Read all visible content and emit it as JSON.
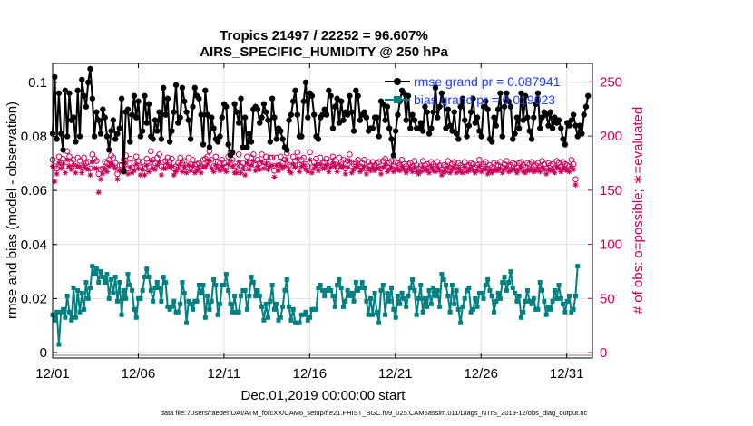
{
  "chart_data": {
    "type": "line",
    "title": "Tropics 21497 / 22252 = 96.607%",
    "subtitle": "AIRS_SPECIFIC_HUMIDITY @ 250 hPa",
    "xlabel": "Dec.01,2019 00:00:00 start",
    "ylabel": "rmse and bias (model - observation)",
    "y2label": "# of obs: o=possible; ∗=evaluated",
    "footer": "data file: /Users/raeder/DAI/ATM_forcXX/CAM6_setup/f.e21.FHIST_BGC.f09_025.CAM6assim.011/Diags_NTrS_2019-12/obs_diag_output.nc",
    "xlim": [
      1,
      32.5
    ],
    "ylim": [
      -0.002,
      0.107
    ],
    "y2lim": [
      -5,
      267
    ],
    "x_ticks": [
      1,
      6,
      11,
      16,
      21,
      26,
      31
    ],
    "x_tick_labels": [
      "12/01",
      "12/06",
      "12/11",
      "12/16",
      "12/21",
      "12/26",
      "12/31"
    ],
    "y_ticks": [
      0,
      0.02,
      0.04,
      0.06,
      0.08,
      0.1
    ],
    "y_tick_labels": [
      "0",
      "0.02",
      "0.04",
      "0.06",
      "0.08",
      "0.1"
    ],
    "y2_ticks": [
      0,
      50,
      100,
      150,
      200,
      250
    ],
    "y2_tick_labels": [
      "0",
      "50",
      "100",
      "150",
      "200",
      "250"
    ],
    "grid": true,
    "legend_position": "top-right",
    "colors": {
      "rmse": "#000000",
      "bias": "#008080",
      "obs": "#c8005a",
      "legend_text": "#1a3cff",
      "grid": "#e0e0e0"
    },
    "series": [
      {
        "name": "rmse grand pr = 0.087941",
        "axis": "left",
        "values": [
          0.081,
          0.102,
          0.079,
          0.096,
          0.081,
          0.075,
          0.097,
          0.08,
          0.096,
          0.086,
          0.087,
          0.078,
          0.097,
          0.08,
          0.101,
          0.095,
          0.091,
          0.1,
          0.105,
          0.094,
          0.08,
          0.089,
          0.086,
          0.081,
          0.09,
          0.087,
          0.08,
          0.075,
          0.082,
          0.086,
          0.079,
          0.081,
          0.083,
          0.094,
          0.067,
          0.089,
          0.09,
          0.078,
          0.088,
          0.095,
          0.087,
          0.093,
          0.08,
          0.082,
          0.095,
          0.085,
          0.092,
          0.08,
          0.079,
          0.086,
          0.082,
          0.089,
          0.079,
          0.098,
          0.088,
          0.094,
          0.078,
          0.082,
          0.089,
          0.099,
          0.085,
          0.087,
          0.098,
          0.093,
          0.089,
          0.086,
          0.079,
          0.091,
          0.098,
          0.095,
          0.094,
          0.088,
          0.077,
          0.097,
          0.088,
          0.076,
          0.087,
          0.083,
          0.079,
          0.078,
          0.08,
          0.087,
          0.092,
          0.091,
          0.077,
          0.073,
          0.074,
          0.092,
          0.089,
          0.085,
          0.094,
          0.076,
          0.087,
          0.076,
          0.081,
          0.078,
          0.09,
          0.091,
          0.09,
          0.085,
          0.087,
          0.092,
          0.089,
          0.086,
          0.078,
          0.094,
          0.087,
          0.079,
          0.083,
          0.082,
          0.079,
          0.076,
          0.075,
          0.086,
          0.088,
          0.093,
          0.097,
          0.088,
          0.08,
          0.08,
          0.093,
          0.1,
          0.087,
          0.096,
          0.095,
          0.088,
          0.08,
          0.079,
          0.087,
          0.088,
          0.09,
          0.088,
          0.097,
          0.095,
          0.083,
          0.091,
          0.094,
          0.085,
          0.093,
          0.086,
          0.089,
          0.088,
          0.095,
          0.089,
          0.082,
          0.097,
          0.095,
          0.086,
          0.088,
          0.089,
          0.087,
          0.082,
          0.083,
          0.083,
          0.087,
          0.087,
          0.08,
          0.093,
          0.092,
          0.086,
          0.091,
          0.083,
          0.079,
          0.073,
          0.082,
          0.088,
          0.093,
          0.097,
          0.096,
          0.086,
          0.095,
          0.083,
          0.088,
          0.086,
          0.083,
          0.083,
          0.085,
          0.082,
          0.091,
          0.089,
          0.081,
          0.083,
          0.089,
          0.098,
          0.087,
          0.091,
          0.096,
          0.093,
          0.083,
          0.09,
          0.084,
          0.082,
          0.089,
          0.081,
          0.079,
          0.091,
          0.094,
          0.086,
          0.08,
          0.084,
          0.089,
          0.094,
          0.085,
          0.087,
          0.082,
          0.08,
          0.091,
          0.093,
          0.09,
          0.079,
          0.078,
          0.087,
          0.084,
          0.09,
          0.096,
          0.08,
          0.091,
          0.096,
          0.093,
          0.091,
          0.079,
          0.081,
          0.087,
          0.083,
          0.096,
          0.086,
          0.095,
          0.087,
          0.082,
          0.079,
          0.087,
          0.092,
          0.096,
          0.083,
          0.087,
          0.089,
          0.088,
          0.084,
          0.089,
          0.083,
          0.087,
          0.085,
          0.086,
          0.083,
          0.079,
          0.077,
          0.085,
          0.084,
          0.086,
          0.088,
          0.084,
          0.08,
          0.084,
          0.081,
          0.088,
          0.091,
          0.095
        ]
      },
      {
        "name": "bias grand pr = 0.019023",
        "axis": "left",
        "values": [
          0.014,
          0.012,
          0.015,
          0.003,
          0.015,
          0.016,
          0.013,
          0.021,
          0.015,
          0.012,
          0.024,
          0.013,
          0.023,
          0.015,
          0.022,
          0.016,
          0.026,
          0.02,
          0.024,
          0.032,
          0.029,
          0.031,
          0.026,
          0.03,
          0.028,
          0.026,
          0.029,
          0.02,
          0.027,
          0.022,
          0.028,
          0.019,
          0.026,
          0.014,
          0.023,
          0.02,
          0.029,
          0.025,
          0.023,
          0.016,
          0.013,
          0.02,
          0.02,
          0.023,
          0.028,
          0.031,
          0.028,
          0.023,
          0.019,
          0.024,
          0.026,
          0.024,
          0.019,
          0.028,
          0.026,
          0.017,
          0.016,
          0.017,
          0.019,
          0.015,
          0.015,
          0.018,
          0.026,
          0.022,
          0.011,
          0.019,
          0.018,
          0.016,
          0.019,
          0.019,
          0.025,
          0.022,
          0.025,
          0.013,
          0.021,
          0.016,
          0.019,
          0.027,
          0.025,
          0.014,
          0.018,
          0.025,
          0.025,
          0.029,
          0.023,
          0.018,
          0.015,
          0.021,
          0.015,
          0.015,
          0.021,
          0.023,
          0.023,
          0.016,
          0.021,
          0.028,
          0.026,
          0.021,
          0.023,
          0.021,
          0.017,
          0.012,
          0.018,
          0.013,
          0.019,
          0.025,
          0.016,
          0.018,
          0.012,
          0.013,
          0.017,
          0.023,
          0.027,
          0.017,
          0.012,
          0.016,
          0.011,
          0.011,
          0.011,
          0.014,
          0.014,
          0.015,
          0.012,
          0.013,
          0.016,
          0.016,
          0.016,
          0.024,
          0.025,
          0.023,
          0.021,
          0.023,
          0.024,
          0.023,
          0.021,
          0.017,
          0.025,
          0.027,
          0.024,
          0.017,
          0.019,
          0.023,
          0.021,
          0.022,
          0.019,
          0.026,
          0.023,
          0.024,
          0.026,
          0.024,
          0.019,
          0.014,
          0.02,
          0.014,
          0.022,
          0.015,
          0.011,
          0.023,
          0.025,
          0.014,
          0.022,
          0.019,
          0.024,
          0.016,
          0.013,
          0.021,
          0.018,
          0.022,
          0.02,
          0.017,
          0.021,
          0.024,
          0.027,
          0.023,
          0.014,
          0.02,
          0.025,
          0.015,
          0.02,
          0.017,
          0.023,
          0.018,
          0.024,
          0.021,
          0.023,
          0.017,
          0.029,
          0.027,
          0.025,
          0.021,
          0.015,
          0.025,
          0.018,
          0.023,
          0.016,
          0.011,
          0.017,
          0.02,
          0.023,
          0.024,
          0.015,
          0.016,
          0.02,
          0.017,
          0.022,
          0.022,
          0.02,
          0.025,
          0.027,
          0.023,
          0.021,
          0.015,
          0.019,
          0.022,
          0.02,
          0.026,
          0.028,
          0.023,
          0.026,
          0.03,
          0.024,
          0.022,
          0.019,
          0.021,
          0.013,
          0.015,
          0.019,
          0.023,
          0.019,
          0.018,
          0.02,
          0.016,
          0.016,
          0.026,
          0.023,
          0.019,
          0.014,
          0.017,
          0.016,
          0.019,
          0.023,
          0.02,
          0.025,
          0.02,
          0.018,
          0.015,
          0.019,
          0.021,
          0.015,
          0.016,
          0.021,
          0.032
        ]
      },
      {
        "name": "obs possible",
        "axis": "right",
        "marker": "o",
        "values": [
          178,
          172,
          170,
          181,
          175,
          179,
          172,
          186,
          181,
          175,
          178,
          172,
          180,
          177,
          171,
          180,
          175,
          176,
          170,
          183,
          179,
          177,
          165,
          169,
          170,
          176,
          175,
          178,
          182,
          180,
          175,
          165,
          173,
          173,
          178,
          182,
          170,
          179,
          171,
          175,
          181,
          177,
          171,
          176,
          170,
          179,
          172,
          186,
          178,
          175,
          180,
          183,
          172,
          176,
          177,
          180,
          176,
          179,
          170,
          172,
          175,
          180,
          175,
          177,
          171,
          180,
          174,
          178,
          173,
          174,
          175,
          172,
          178,
          179,
          181,
          186,
          178,
          172,
          181,
          176,
          175,
          178,
          175,
          172,
          181,
          185,
          178,
          172,
          171,
          183,
          172,
          175,
          170,
          181,
          175,
          180,
          183,
          173,
          178,
          175,
          183,
          176,
          181,
          174,
          180,
          180,
          168,
          180,
          173,
          181,
          175,
          178,
          184,
          173,
          172,
          181,
          177,
          185,
          173,
          178,
          180,
          174,
          172,
          185,
          171,
          176,
          179,
          173,
          180,
          175,
          176,
          179,
          172,
          176,
          181,
          178,
          172,
          180,
          176,
          178,
          170,
          177,
          183,
          172,
          174,
          176,
          178,
          172,
          175,
          178,
          170,
          176,
          173,
          176,
          173,
          175,
          176,
          170,
          177,
          179,
          172,
          175,
          177,
          172,
          176,
          175,
          173,
          178,
          174,
          172,
          174,
          175,
          172,
          177,
          173,
          170,
          172,
          177,
          173,
          174,
          171,
          176,
          174,
          172,
          176,
          173,
          169,
          173,
          172,
          177,
          171,
          174,
          176,
          171,
          175,
          173,
          171,
          176,
          172,
          173,
          175,
          174,
          171,
          173,
          178,
          172,
          174,
          176,
          170,
          173,
          171,
          175,
          173,
          173,
          176,
          171,
          174,
          177,
          172,
          173,
          175,
          174,
          171,
          175,
          176,
          173,
          171,
          175,
          174,
          176,
          172,
          173,
          175,
          172,
          177,
          174,
          170,
          175,
          173,
          174,
          171,
          177,
          175,
          172,
          176,
          174,
          173,
          172,
          178,
          174,
          160
        ]
      },
      {
        "name": "obs evaluated",
        "axis": "right",
        "marker": "*",
        "values": [
          172,
          158,
          165,
          175,
          170,
          174,
          166,
          178,
          172,
          169,
          173,
          166,
          172,
          171,
          166,
          173,
          170,
          169,
          164,
          176,
          170,
          170,
          148,
          160,
          165,
          170,
          167,
          172,
          175,
          173,
          170,
          160,
          168,
          167,
          171,
          175,
          165,
          171,
          166,
          168,
          174,
          170,
          164,
          169,
          164,
          173,
          167,
          177,
          170,
          169,
          173,
          176,
          164,
          170,
          170,
          174,
          171,
          172,
          164,
          167,
          170,
          174,
          167,
          171,
          166,
          173,
          168,
          172,
          166,
          168,
          170,
          166,
          172,
          171,
          174,
          177,
          170,
          167,
          173,
          170,
          168,
          172,
          169,
          167,
          174,
          177,
          172,
          166,
          166,
          176,
          166,
          170,
          164,
          175,
          169,
          173,
          177,
          168,
          172,
          169,
          176,
          170,
          174,
          169,
          172,
          173,
          162,
          173,
          168,
          173,
          170,
          172,
          178,
          168,
          166,
          174,
          171,
          179,
          167,
          172,
          173,
          169,
          167,
          178,
          166,
          170,
          173,
          168,
          174,
          170,
          170,
          173,
          167,
          171,
          175,
          172,
          167,
          174,
          171,
          172,
          165,
          171,
          177,
          166,
          169,
          171,
          172,
          167,
          169,
          172,
          165,
          170,
          168,
          171,
          168,
          170,
          170,
          165,
          171,
          173,
          167,
          169,
          171,
          167,
          170,
          169,
          168,
          172,
          169,
          166,
          169,
          170,
          167,
          171,
          167,
          165,
          167,
          171,
          168,
          169,
          166,
          171,
          168,
          167,
          171,
          168,
          164,
          167,
          167,
          171,
          166,
          169,
          171,
          166,
          170,
          167,
          166,
          171,
          167,
          168,
          170,
          168,
          166,
          168,
          172,
          167,
          169,
          170,
          165,
          168,
          166,
          169,
          168,
          168,
          170,
          166,
          169,
          171,
          167,
          168,
          169,
          169,
          166,
          169,
          171,
          167,
          166,
          169,
          168,
          170,
          167,
          168,
          170,
          167,
          171,
          169,
          165,
          169,
          168,
          169,
          166,
          171,
          170,
          167,
          170,
          169,
          168,
          167,
          172,
          169,
          155
        ]
      }
    ]
  }
}
